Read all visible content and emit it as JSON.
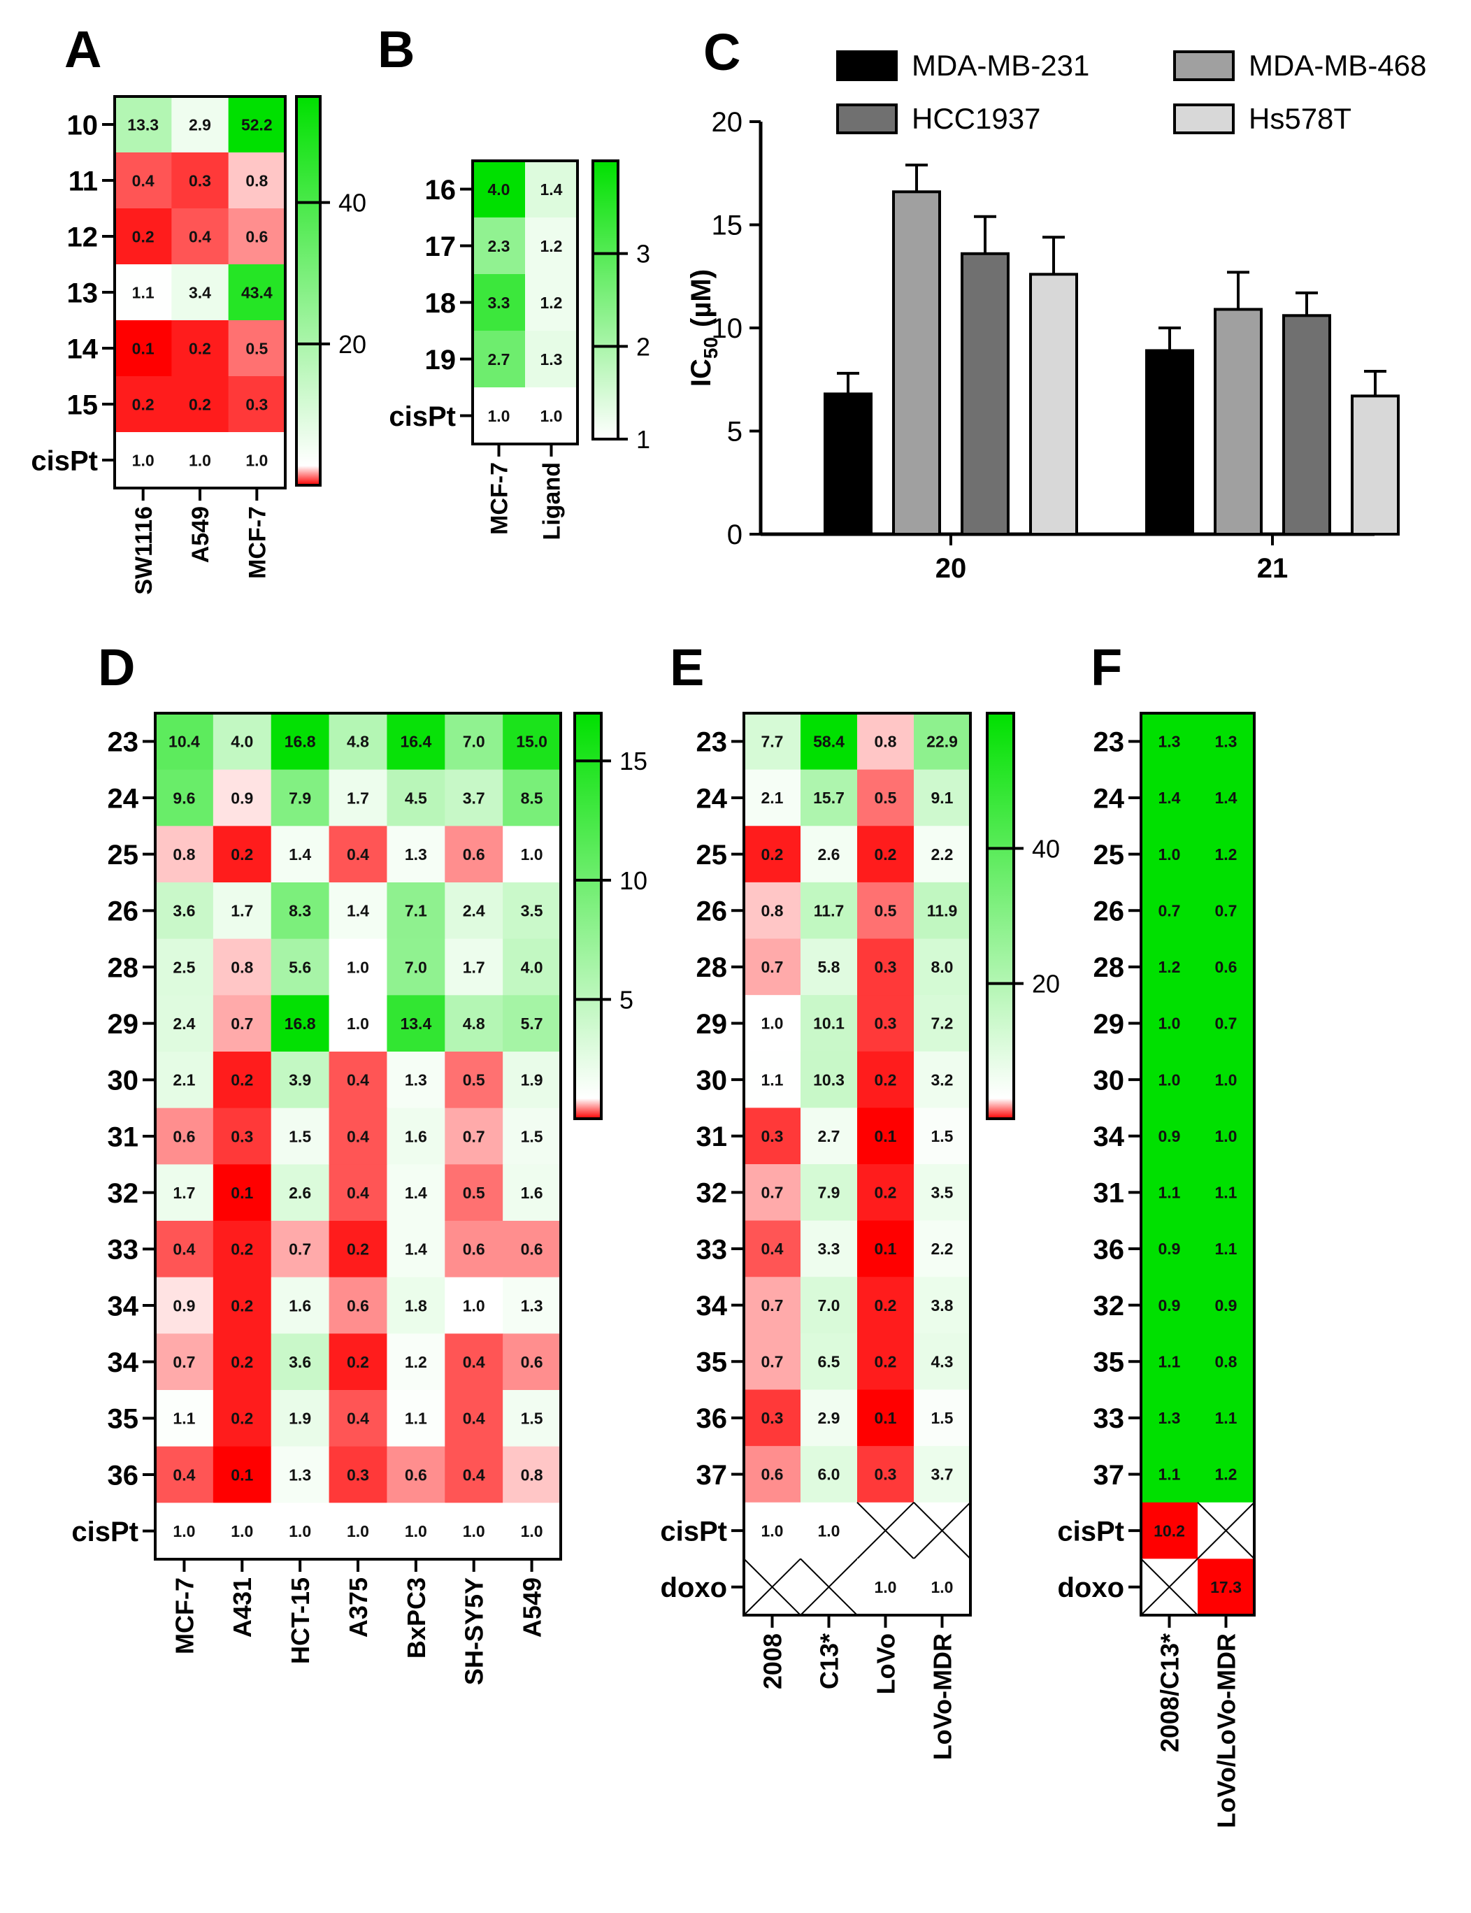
{
  "chart_data": [
    {
      "panel": "A",
      "type": "heatmap",
      "title": "A",
      "rows": [
        "10",
        "11",
        "12",
        "13",
        "14",
        "15",
        "cisPt"
      ],
      "columns": [
        "SW1116",
        "A549",
        "MCF-7"
      ],
      "values": [
        [
          "13.3",
          "2.9",
          "52.2"
        ],
        [
          "0.4",
          "0.3",
          "0.8"
        ],
        [
          "0.2",
          "0.4",
          "0.6"
        ],
        [
          "1.1",
          "3.4",
          "43.4"
        ],
        [
          "0.1",
          "0.2",
          "0.5"
        ],
        [
          "0.2",
          "0.2",
          "0.3"
        ],
        [
          "1.0",
          "1.0",
          "1.0"
        ]
      ],
      "colorbar": {
        "min": 0,
        "max": 55,
        "ticks": [
          "20",
          "40"
        ],
        "low_color": "#ff0000",
        "mid_color": "#ffffff",
        "high_color": "#00e000"
      }
    },
    {
      "panel": "B",
      "type": "heatmap",
      "title": "B",
      "rows": [
        "16",
        "17",
        "18",
        "19",
        "cisPt"
      ],
      "columns": [
        "MCF-7",
        "Ligand"
      ],
      "values": [
        [
          "4.0",
          "1.4"
        ],
        [
          "2.3",
          "1.2"
        ],
        [
          "3.3",
          "1.2"
        ],
        [
          "2.7",
          "1.3"
        ],
        [
          "1.0",
          "1.0"
        ]
      ],
      "colorbar": {
        "min": 1,
        "max": 4,
        "ticks": [
          "1",
          "2",
          "3"
        ],
        "low_color": "#ffffff",
        "high_color": "#00e000"
      }
    },
    {
      "panel": "C",
      "type": "bar",
      "title": "C",
      "categories": [
        "20",
        "21"
      ],
      "series": [
        {
          "name": "MDA-MB-231",
          "color": "#000000",
          "values": [
            6.8,
            8.9
          ],
          "errors": [
            1.0,
            1.1
          ]
        },
        {
          "name": "MDA-MB-468",
          "color": "#a0a0a0",
          "values": [
            16.6,
            10.9
          ],
          "errors": [
            1.3,
            1.8
          ]
        },
        {
          "name": "HCC1937",
          "color": "#707070",
          "values": [
            13.6,
            10.6
          ],
          "errors": [
            1.8,
            1.1
          ]
        },
        {
          "name": "Hs578T",
          "color": "#d8d8d8",
          "values": [
            12.6,
            6.7
          ],
          "errors": [
            1.8,
            1.2
          ]
        }
      ],
      "ylabel": "IC",
      "ylabel_sub": "50",
      "ylabel_unit": "(µM)",
      "ylim": [
        0,
        20
      ],
      "yticks": [
        "0",
        "5",
        "10",
        "15",
        "20"
      ],
      "legend_position": "top"
    },
    {
      "panel": "D",
      "type": "heatmap",
      "title": "D",
      "rows": [
        "23",
        "24",
        "25",
        "26",
        "28",
        "29",
        "30",
        "31",
        "32",
        "33",
        "34",
        "34",
        "35",
        "36",
        "cisPt"
      ],
      "columns": [
        "MCF-7",
        "A431",
        "HCT-15",
        "A375",
        "BxPC3",
        "SH-SY5Y",
        "A549"
      ],
      "values": [
        [
          "10.4",
          "4.0",
          "16.8",
          "4.8",
          "16.4",
          "7.0",
          "15.0"
        ],
        [
          "9.6",
          "0.9",
          "7.9",
          "1.7",
          "4.5",
          "3.7",
          "8.5"
        ],
        [
          "0.8",
          "0.2",
          "1.4",
          "0.4",
          "1.3",
          "0.6",
          "1.0"
        ],
        [
          "3.6",
          "1.7",
          "8.3",
          "1.4",
          "7.1",
          "2.4",
          "3.5"
        ],
        [
          "2.5",
          "0.8",
          "5.6",
          "1.0",
          "7.0",
          "1.7",
          "4.0"
        ],
        [
          "2.4",
          "0.7",
          "16.8",
          "1.0",
          "13.4",
          "4.8",
          "5.7"
        ],
        [
          "2.1",
          "0.2",
          "3.9",
          "0.4",
          "1.3",
          "0.5",
          "1.9"
        ],
        [
          "0.6",
          "0.3",
          "1.5",
          "0.4",
          "1.6",
          "0.7",
          "1.5"
        ],
        [
          "1.7",
          "0.1",
          "2.6",
          "0.4",
          "1.4",
          "0.5",
          "1.6"
        ],
        [
          "0.4",
          "0.2",
          "0.7",
          "0.2",
          "1.4",
          "0.6",
          "0.6"
        ],
        [
          "0.9",
          "0.2",
          "1.6",
          "0.6",
          "1.8",
          "1.0",
          "1.3"
        ],
        [
          "0.7",
          "0.2",
          "3.6",
          "0.2",
          "1.2",
          "0.4",
          "0.6"
        ],
        [
          "1.1",
          "0.2",
          "1.9",
          "0.4",
          "1.1",
          "0.4",
          "1.5"
        ],
        [
          "0.4",
          "0.1",
          "1.3",
          "0.3",
          "0.6",
          "0.4",
          "0.8"
        ],
        [
          "1.0",
          "1.0",
          "1.0",
          "1.0",
          "1.0",
          "1.0",
          "1.0"
        ]
      ],
      "colorbar": {
        "min": 0,
        "max": 17,
        "ticks": [
          "5",
          "10",
          "15"
        ],
        "low_color": "#ff0000",
        "mid_color": "#ffffff",
        "high_color": "#00e000"
      }
    },
    {
      "panel": "E",
      "type": "heatmap",
      "title": "E",
      "rows": [
        "23",
        "24",
        "25",
        "26",
        "28",
        "29",
        "30",
        "31",
        "32",
        "33",
        "34",
        "35",
        "36",
        "37",
        "cisPt",
        "doxo"
      ],
      "columns": [
        "2008",
        "C13*",
        "LoVo",
        "LoVo-MDR"
      ],
      "values": [
        [
          "7.7",
          "58.4",
          "0.8",
          "22.9"
        ],
        [
          "2.1",
          "15.7",
          "0.5",
          "9.1"
        ],
        [
          "0.2",
          "2.6",
          "0.2",
          "2.2"
        ],
        [
          "0.8",
          "11.7",
          "0.5",
          "11.9"
        ],
        [
          "0.7",
          "5.8",
          "0.3",
          "8.0"
        ],
        [
          "1.0",
          "10.1",
          "0.3",
          "7.2"
        ],
        [
          "1.1",
          "10.3",
          "0.2",
          "3.2"
        ],
        [
          "0.3",
          "2.7",
          "0.1",
          "1.5"
        ],
        [
          "0.7",
          "7.9",
          "0.2",
          "3.5"
        ],
        [
          "0.4",
          "3.3",
          "0.1",
          "2.2"
        ],
        [
          "0.7",
          "7.0",
          "0.2",
          "3.8"
        ],
        [
          "0.7",
          "6.5",
          "0.2",
          "4.3"
        ],
        [
          "0.3",
          "2.9",
          "0.1",
          "1.5"
        ],
        [
          "0.6",
          "6.0",
          "0.3",
          "3.7"
        ],
        [
          "1.0",
          "1.0",
          null,
          null
        ],
        [
          null,
          null,
          "1.0",
          "1.0"
        ]
      ],
      "colorbar": {
        "min": 0,
        "max": 60,
        "ticks": [
          "20",
          "40"
        ],
        "low_color": "#ff0000",
        "mid_color": "#ffffff",
        "high_color": "#00e000"
      }
    },
    {
      "panel": "F",
      "type": "heatmap",
      "title": "F",
      "rows": [
        "23",
        "24",
        "25",
        "26",
        "28",
        "29",
        "30",
        "34",
        "31",
        "36",
        "32",
        "35",
        "33",
        "37",
        "cisPt",
        "doxo"
      ],
      "columns": [
        "2008/C13*",
        "LoVo/LoVo-MDR"
      ],
      "values": [
        [
          "1.3",
          "1.3"
        ],
        [
          "1.4",
          "1.4"
        ],
        [
          "1.0",
          "1.2"
        ],
        [
          "0.7",
          "0.7"
        ],
        [
          "1.2",
          "0.6"
        ],
        [
          "1.0",
          "0.7"
        ],
        [
          "1.0",
          "1.0"
        ],
        [
          "0.9",
          "1.0"
        ],
        [
          "1.1",
          "1.1"
        ],
        [
          "0.9",
          "1.1"
        ],
        [
          "0.9",
          "0.9"
        ],
        [
          "1.1",
          "0.8"
        ],
        [
          "1.3",
          "1.1"
        ],
        [
          "1.1",
          "1.2"
        ],
        [
          "10.2",
          null
        ],
        [
          null,
          "17.3"
        ]
      ],
      "cell_color_rule": "rows 23–37 bright green, cisPt/doxo values red",
      "green_color": "#00e000",
      "red_color": "#ff0000"
    }
  ]
}
